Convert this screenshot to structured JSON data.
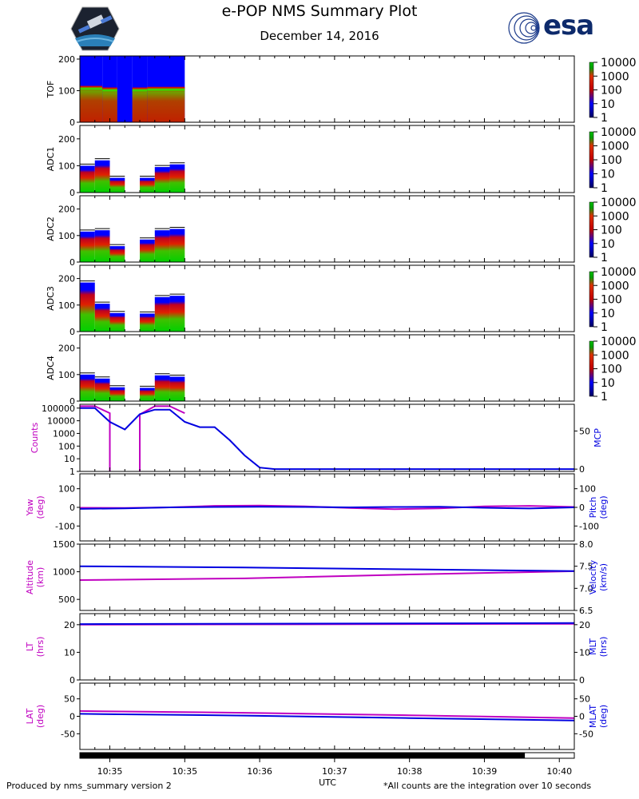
{
  "header": {
    "title": "e-POP NMS Summary Plot",
    "date": "December 14, 2016",
    "esa_logo_text": "esa"
  },
  "footer": {
    "left": "Produced by nms_summary version 2",
    "right": "*All counts are the integration over 10 seconds"
  },
  "chart_data": [
    {
      "type": "heatmap",
      "name": "TOF",
      "ylabel": "TOF",
      "ylim": [
        0,
        210
      ],
      "yticks": [
        "0",
        "100",
        "200"
      ],
      "colorbar": {
        "labels": [
          "10000",
          "1000",
          "100",
          "10",
          "1"
        ]
      },
      "columns": [
        {
          "t": [
            0.0,
            1.5
          ],
          "top": 210,
          "hot_top": 115
        },
        {
          "t": [
            1.5,
            2.5
          ],
          "top": 210,
          "hot_top": 110
        },
        {
          "t": [
            2.5,
            3.5
          ],
          "top": 210,
          "hot_top": 0
        },
        {
          "t": [
            3.5,
            4.5
          ],
          "top": 210,
          "hot_top": 110
        },
        {
          "t": [
            4.5,
            7.0
          ],
          "top": 210,
          "hot_top": 112
        }
      ]
    },
    {
      "type": "heatmap",
      "name": "ADC1",
      "ylabel": "ADC1",
      "ylim": [
        0,
        250
      ],
      "yticks": [
        "0",
        "100",
        "200"
      ],
      "colorbar": {
        "labels": [
          "10000",
          "1000",
          "100",
          "10",
          "1"
        ]
      },
      "columns": [
        {
          "t": [
            0.0,
            1.0
          ],
          "top": 100
        },
        {
          "t": [
            1.0,
            2.0
          ],
          "top": 120
        },
        {
          "t": [
            2.0,
            3.0
          ],
          "top": 55
        },
        {
          "t": [
            4.0,
            5.0
          ],
          "top": 55
        },
        {
          "t": [
            5.0,
            6.0
          ],
          "top": 95
        },
        {
          "t": [
            6.0,
            7.0
          ],
          "top": 105
        }
      ]
    },
    {
      "type": "heatmap",
      "name": "ADC2",
      "ylabel": "ADC2",
      "ylim": [
        0,
        250
      ],
      "yticks": [
        "0",
        "100",
        "200"
      ],
      "colorbar": {
        "labels": [
          "10000",
          "1000",
          "100",
          "10",
          "1"
        ]
      },
      "columns": [
        {
          "t": [
            0.0,
            1.0
          ],
          "top": 115
        },
        {
          "t": [
            1.0,
            2.0
          ],
          "top": 120
        },
        {
          "t": [
            2.0,
            3.0
          ],
          "top": 60
        },
        {
          "t": [
            4.0,
            5.0
          ],
          "top": 85
        },
        {
          "t": [
            5.0,
            6.0
          ],
          "top": 120
        },
        {
          "t": [
            6.0,
            7.0
          ],
          "top": 125
        }
      ]
    },
    {
      "type": "heatmap",
      "name": "ADC3",
      "ylabel": "ADC3",
      "ylim": [
        0,
        250
      ],
      "yticks": [
        "0",
        "100",
        "200"
      ],
      "colorbar": {
        "labels": [
          "10000",
          "1000",
          "100",
          "10",
          "1"
        ]
      },
      "columns": [
        {
          "t": [
            0.0,
            1.0
          ],
          "top": 185
        },
        {
          "t": [
            1.0,
            2.0
          ],
          "top": 105
        },
        {
          "t": [
            2.0,
            3.0
          ],
          "top": 70
        },
        {
          "t": [
            4.0,
            5.0
          ],
          "top": 68
        },
        {
          "t": [
            5.0,
            6.0
          ],
          "top": 130
        },
        {
          "t": [
            6.0,
            7.0
          ],
          "top": 135
        }
      ]
    },
    {
      "type": "heatmap",
      "name": "ADC4",
      "ylabel": "ADC4",
      "ylim": [
        0,
        250
      ],
      "yticks": [
        "0",
        "100",
        "200"
      ],
      "colorbar": {
        "labels": [
          "10000",
          "1000",
          "100",
          "10",
          "1"
        ]
      },
      "columns": [
        {
          "t": [
            0.0,
            1.0
          ],
          "top": 100
        },
        {
          "t": [
            1.0,
            2.0
          ],
          "top": 85
        },
        {
          "t": [
            2.0,
            3.0
          ],
          "top": 52
        },
        {
          "t": [
            4.0,
            5.0
          ],
          "top": 50
        },
        {
          "t": [
            5.0,
            6.0
          ],
          "top": 97
        },
        {
          "t": [
            6.0,
            7.0
          ],
          "top": 92
        }
      ]
    },
    {
      "type": "line",
      "name": "counts-mcp",
      "ylabel": "Counts",
      "y2label": "MCP",
      "ylog": true,
      "ylim_log": [
        0,
        5.3
      ],
      "yticks": [
        "1",
        "10",
        "100",
        "1000",
        "10000",
        "100000"
      ],
      "y2lim": [
        -3,
        85
      ],
      "y2ticks": [
        "0",
        "50"
      ],
      "series": [
        {
          "name": "Counts",
          "color": "#c000c0",
          "axis": "left",
          "segments": [
            [
              [
                0,
                5.15
              ],
              [
                1,
                5.15
              ],
              [
                2,
                4.6
              ],
              [
                2,
                0
              ]
            ],
            [
              [
                4,
                0
              ],
              [
                4,
                4.5
              ],
              [
                5,
                5.15
              ],
              [
                6,
                5.15
              ],
              [
                7,
                4.6
              ]
            ]
          ]
        },
        {
          "name": "MCP",
          "color": "#0000e0",
          "axis": "right",
          "points": [
            [
              0,
              80
            ],
            [
              1,
              80
            ],
            [
              2,
              62
            ],
            [
              3,
              52
            ],
            [
              4,
              72
            ],
            [
              5,
              78
            ],
            [
              6,
              78
            ],
            [
              7,
              62
            ],
            [
              8,
              55
            ],
            [
              9,
              55
            ],
            [
              10,
              38
            ],
            [
              11,
              18
            ],
            [
              12,
              2
            ],
            [
              13,
              0
            ],
            [
              33,
              0
            ]
          ]
        }
      ]
    },
    {
      "type": "line",
      "name": "yaw-pitch",
      "ylabel": "Yaw\n(deg)",
      "y2label": "Pitch\n(deg)",
      "ylim": [
        -180,
        180
      ],
      "yticks": [
        "-100",
        "0",
        "100"
      ],
      "y2ticks": [
        "-100",
        "0",
        "100"
      ],
      "series": [
        {
          "name": "Yaw",
          "color": "#c000c0",
          "points": [
            [
              0,
              -2
            ],
            [
              3,
              -3
            ],
            [
              6,
              0
            ],
            [
              9,
              8
            ],
            [
              12,
              10
            ],
            [
              15,
              5
            ],
            [
              18,
              -3
            ],
            [
              21,
              -10
            ],
            [
              24,
              -5
            ],
            [
              27,
              5
            ],
            [
              30,
              8
            ],
            [
              33,
              2
            ]
          ]
        },
        {
          "name": "Pitch",
          "color": "#0000e0",
          "points": [
            [
              0,
              -8
            ],
            [
              3,
              -5
            ],
            [
              6,
              0
            ],
            [
              9,
              2
            ],
            [
              12,
              3
            ],
            [
              15,
              2
            ],
            [
              18,
              0
            ],
            [
              21,
              2
            ],
            [
              24,
              3
            ],
            [
              27,
              -2
            ],
            [
              30,
              -6
            ],
            [
              33,
              0
            ]
          ]
        }
      ]
    },
    {
      "type": "line",
      "name": "altitude-velocity",
      "ylabel": "Altitude\n(km)",
      "y2label": "Velocity\n(km/s)",
      "ylim": [
        300,
        1500
      ],
      "yticks": [
        "500",
        "1000",
        "1500"
      ],
      "y2lim": [
        6.5,
        8.0
      ],
      "y2ticks": [
        "6.5",
        "7.0",
        "7.5",
        "8.0"
      ],
      "series": [
        {
          "name": "Altitude",
          "color": "#c000c0",
          "points": [
            [
              0,
              850
            ],
            [
              11,
              880
            ],
            [
              22,
              950
            ],
            [
              33,
              1010
            ]
          ]
        },
        {
          "name": "Velocity",
          "color": "#0000e0",
          "axis": "right",
          "points": [
            [
              0,
              7.5
            ],
            [
              11,
              7.47
            ],
            [
              22,
              7.43
            ],
            [
              33,
              7.39
            ]
          ]
        }
      ]
    },
    {
      "type": "line",
      "name": "lt-mlt",
      "ylabel": "LT\n(hrs)",
      "y2label": "MLT\n(hrs)",
      "ylim": [
        0,
        24
      ],
      "yticks": [
        "0",
        "10",
        "20"
      ],
      "y2ticks": [
        "0",
        "10",
        "20"
      ],
      "series": [
        {
          "name": "LT",
          "color": "#c000c0",
          "points": [
            [
              0,
              20.0
            ],
            [
              33,
              20.3
            ]
          ]
        },
        {
          "name": "MLT",
          "color": "#0000e0",
          "points": [
            [
              0,
              20.2
            ],
            [
              33,
              20.6
            ]
          ]
        }
      ]
    },
    {
      "type": "line",
      "name": "lat-mlat",
      "ylabel": "LAT\n(deg)",
      "y2label": "MLAT\n(deg)",
      "ylim": [
        -95,
        95
      ],
      "yticks": [
        "-50",
        "0",
        "50"
      ],
      "y2ticks": [
        "-50",
        "0",
        "50"
      ],
      "series": [
        {
          "name": "LAT",
          "color": "#c000c0",
          "points": [
            [
              0,
              15
            ],
            [
              11,
              10
            ],
            [
              22,
              3
            ],
            [
              33,
              -5
            ]
          ]
        },
        {
          "name": "MLAT",
          "color": "#0000e0",
          "points": [
            [
              0,
              7
            ],
            [
              11,
              2
            ],
            [
              22,
              -5
            ],
            [
              33,
              -12
            ]
          ]
        }
      ]
    }
  ],
  "xaxis": {
    "label": "UTC",
    "tmax": 33,
    "ticks": [
      {
        "t": 2,
        "label": "10:35"
      },
      {
        "t": 7,
        "label": "10:35"
      },
      {
        "t": 12,
        "label": "10:36"
      },
      {
        "t": 17,
        "label": "10:37"
      },
      {
        "t": 22,
        "label": "10:38"
      },
      {
        "t": 27,
        "label": "10:39"
      },
      {
        "t": 32,
        "label": "10:40"
      }
    ],
    "coverage_fraction": 0.9
  }
}
